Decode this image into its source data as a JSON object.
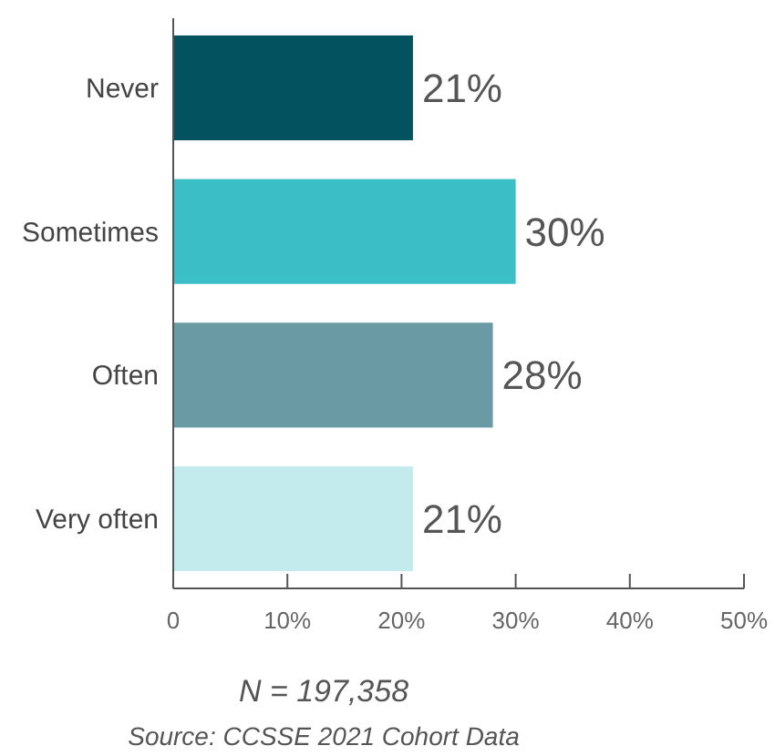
{
  "chart_data": {
    "type": "bar",
    "orientation": "horizontal",
    "categories": [
      "Never",
      "Sometimes",
      "Often",
      "Very often"
    ],
    "values": [
      21,
      30,
      28,
      21
    ],
    "colors": [
      "#02535f",
      "#3bbec6",
      "#6a9ba4",
      "#c3eaec"
    ],
    "value_labels": [
      "21%",
      "30%",
      "28%",
      "21%"
    ],
    "xlim": [
      0,
      50
    ],
    "xticks": [
      0,
      {
        "value": 10,
        "label": "10%"
      },
      {
        "value": 20,
        "label": "20%"
      },
      {
        "value": 30,
        "label": "30%"
      },
      {
        "value": 40,
        "label": "40%"
      },
      {
        "value": 50,
        "label": "50%"
      }
    ],
    "grid": false,
    "annotations": [
      "N = 197,358",
      "Source: CCSSE 2021 Cohort Data"
    ]
  }
}
